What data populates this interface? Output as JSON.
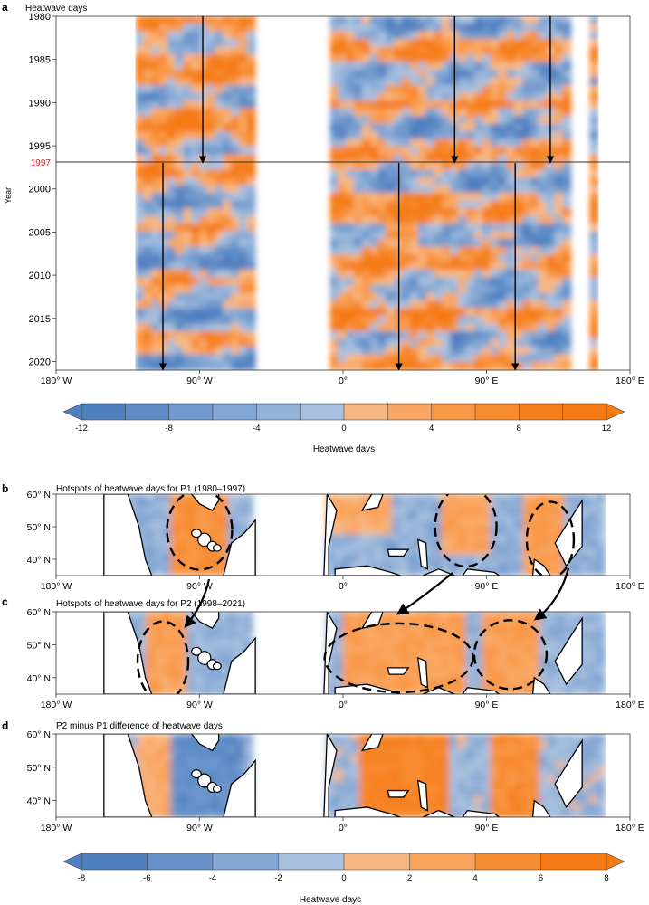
{
  "panels": {
    "a": {
      "letter": "a",
      "title": "Heatwave days",
      "ylabel": "Year",
      "split_label": "1997",
      "split_color": "#d7262e"
    },
    "b": {
      "letter": "b",
      "title": "Hotspots of heatwave days for P1 (1980–1997)"
    },
    "c": {
      "letter": "c",
      "title": "Hotspots of heatwave days for P2 (1998–2021)"
    },
    "d": {
      "letter": "d",
      "title": "P2 minus P1 difference of heatwave days"
    }
  },
  "colorbars": [
    {
      "label": "Heatwave days",
      "ticks": [
        "-12",
        "-8",
        "-4",
        "0",
        "4",
        "8",
        "12"
      ],
      "range": [
        -12,
        12
      ],
      "levels": 12
    },
    {
      "label": "Heatwave days",
      "ticks": [
        "-8",
        "-6",
        "-4",
        "-2",
        "0",
        "2",
        "4",
        "6",
        "8"
      ],
      "range": [
        -8,
        8
      ],
      "levels": 8
    }
  ],
  "colors": {
    "negative_strong": "#4f7fbf",
    "neutral_blue": "#a8c0de",
    "neutral_orange": "#f7b782",
    "positive_strong": "#f57a14"
  },
  "chart_data": [
    {
      "type": "heatmap",
      "panel": "a",
      "title": "Heatwave days",
      "xlabel": "",
      "ylabel": "Year",
      "x_ticks": [
        "180° W",
        "90° W",
        "0°",
        "90° E",
        "180° E"
      ],
      "y_ticks": [
        "1980",
        "1985",
        "1990",
        "1995",
        "2000",
        "2005",
        "2010",
        "2015",
        "2020"
      ],
      "xlim": [
        -180,
        180
      ],
      "ylim": [
        1980,
        2021
      ],
      "split_year": 1997,
      "data_longitude_bands": [
        [
          -130,
          -55
        ],
        [
          -8,
          143
        ],
        [
          155,
          160
        ]
      ],
      "arrows": [
        {
          "lon": -88,
          "from_year": 1980,
          "to_year": 1997
        },
        {
          "lon": -113,
          "from_year": 1997,
          "to_year": 2021
        },
        {
          "lon": 70,
          "from_year": 1980,
          "to_year": 1997
        },
        {
          "lon": 130,
          "from_year": 1980,
          "to_year": 1997
        },
        {
          "lon": 35,
          "from_year": 1997,
          "to_year": 2021
        },
        {
          "lon": 108,
          "from_year": 1997,
          "to_year": 2021
        }
      ]
    },
    {
      "type": "heatmap",
      "panel": "b",
      "title": "Hotspots of heatwave days for P1 (1980–1997)",
      "x_ticks": [
        "180° W",
        "90° W",
        "0°",
        "90° E",
        "180° E"
      ],
      "y_ticks": [
        "40° N",
        "50° N",
        "60° N"
      ],
      "xlim": [
        -180,
        180
      ],
      "ylim": [
        35,
        60
      ],
      "hotspots": [
        {
          "lon_center": -90,
          "lat_center": 49
        },
        {
          "lon_center": 77,
          "lat_center": 50
        },
        {
          "lon_center": 130,
          "lat_center": 46
        }
      ]
    },
    {
      "type": "heatmap",
      "panel": "c",
      "title": "Hotspots of heatwave days for P2 (1998–2021)",
      "x_ticks": [
        "180° W",
        "90° W",
        "0°",
        "90° E",
        "180° E"
      ],
      "y_ticks": [
        "40° N",
        "50° N",
        "60° N"
      ],
      "xlim": [
        -180,
        180
      ],
      "ylim": [
        35,
        60
      ],
      "hotspots": [
        {
          "lon_center": -113,
          "lat_center": 45
        },
        {
          "lon_center": 35,
          "lat_center": 46
        },
        {
          "lon_center": 105,
          "lat_center": 47
        }
      ]
    },
    {
      "type": "heatmap",
      "panel": "d",
      "title": "P2 minus P1 difference of heatwave days",
      "x_ticks": [
        "180° W",
        "90° W",
        "0°",
        "90° E",
        "180° E"
      ],
      "y_ticks": [
        "40° N",
        "50° N",
        "60° N"
      ],
      "xlim": [
        -180,
        180
      ],
      "ylim": [
        35,
        60
      ]
    }
  ]
}
